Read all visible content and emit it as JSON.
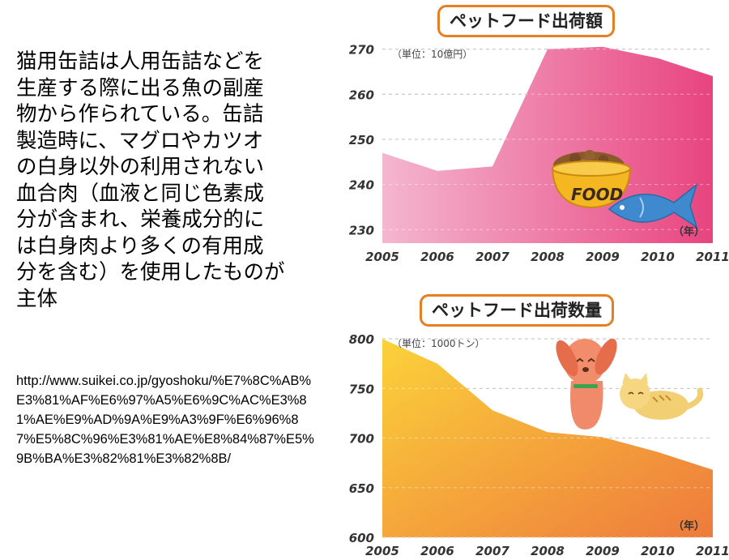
{
  "slide": {
    "description": "猫用缶詰は人用缶詰などを\n生産する際に出る魚の副産\n物から作られている。缶詰\n製造時に、マグロやカツオ\nの白身以外の利用されない\n血合肉（血液と同じ色素成\n分が含まれ、栄養成分的に\nは白身肉より多くの有用成\n分を含む）を使用したものが\n主体",
    "source_url": "http://www.suikei.co.jp/gyoshoku/%E7%8C%AB%E3%81%AF%E6%97%A5%E6%9C%AC%E3%81%AE%E9%AD%9A%E9%A3%9F%E6%96%87%E5%8C%96%E3%81%AE%E8%84%87%E5%9B%BA%E3%82%81%E3%82%8B/"
  },
  "colors": {
    "title_border": "#e67e22",
    "pink_light": "#f4b6cf",
    "pink_dark": "#e8447e",
    "orange_light": "#fbd23a",
    "orange_dark": "#ee7a3c"
  },
  "icons": {
    "top_chart": "food-bowl-and-fish-illustration",
    "bottom_chart": "dog-and-cat-illustration"
  },
  "bowl_label": "FOOD",
  "chart_data": [
    {
      "type": "area",
      "title": "ペットフード出荷額",
      "unit_label": "（単位：10億円）",
      "x_unit_label": "（年）",
      "x": [
        "2005",
        "2006",
        "2007",
        "2008",
        "2009",
        "2010",
        "2011"
      ],
      "values": [
        247,
        243,
        244,
        270,
        270.5,
        268,
        264
      ],
      "ylim": [
        227,
        271
      ],
      "yticks": [
        230,
        240,
        250,
        260,
        270
      ],
      "grid": true,
      "legend": "none"
    },
    {
      "type": "area",
      "title": "ペットフード出荷数量",
      "unit_label": "（単位：1000トン）",
      "x_unit_label": "（年）",
      "x": [
        "2005",
        "2006",
        "2007",
        "2008",
        "2009",
        "2010",
        "2011"
      ],
      "values": [
        800,
        775,
        728,
        706,
        701,
        686,
        668
      ],
      "ylim": [
        600,
        805
      ],
      "yticks": [
        600,
        650,
        700,
        750,
        800
      ],
      "grid": true,
      "legend": "none"
    }
  ]
}
